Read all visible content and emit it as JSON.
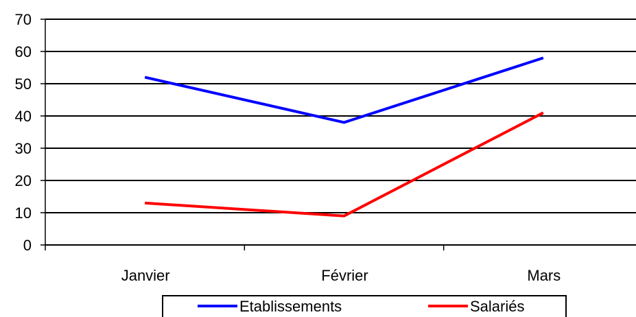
{
  "chart_data": {
    "type": "line",
    "title": "",
    "xlabel": "",
    "ylabel": "",
    "categories": [
      "Janvier",
      "Février",
      "Mars"
    ],
    "ylim": [
      0,
      70
    ],
    "yticks": [
      0,
      10,
      20,
      30,
      40,
      50,
      60,
      70
    ],
    "grid": "horizontal",
    "legend_position": "bottom",
    "series": [
      {
        "name": "Etablissements",
        "color": "#0000ff",
        "values": [
          52,
          38,
          58
        ]
      },
      {
        "name": "Salariés",
        "color": "#ff0000",
        "values": [
          13,
          9,
          41
        ]
      }
    ]
  }
}
